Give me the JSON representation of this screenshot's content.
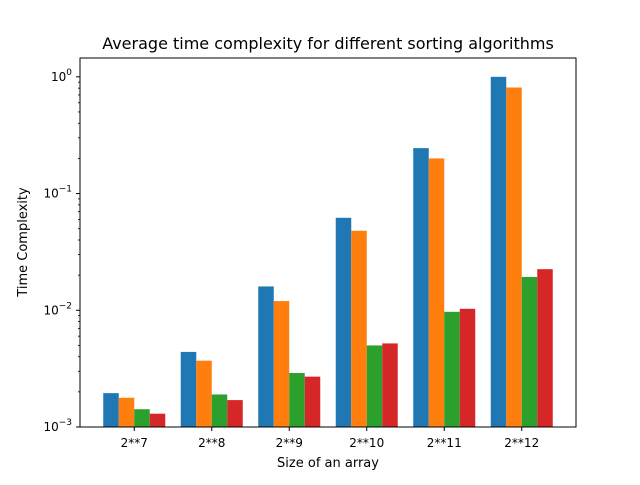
{
  "chart_data": {
    "type": "bar",
    "title": "Average time complexity for different sorting algorithms",
    "xlabel": "Size of an array",
    "ylabel": "Time Complexity",
    "yscale": "log",
    "ylim": [
      0.001,
      1.45
    ],
    "categories": [
      "2**7",
      "2**8",
      "2**9",
      "2**10",
      "2**11",
      "2**12"
    ],
    "ytick_values": [
      0.001,
      0.01,
      0.1,
      1
    ],
    "ytick_labels": [
      {
        "base": "10",
        "exp": "−3"
      },
      {
        "base": "10",
        "exp": "−2"
      },
      {
        "base": "10",
        "exp": "−1"
      },
      {
        "base": "10",
        "exp": "0"
      }
    ],
    "grid": false,
    "legend": "none",
    "series": [
      {
        "color": "#1f77b4",
        "values": [
          0.00195,
          0.0044,
          0.016,
          0.062,
          0.245,
          1.0
        ]
      },
      {
        "color": "#ff7f0e",
        "values": [
          0.00178,
          0.0037,
          0.012,
          0.048,
          0.2,
          0.81
        ]
      },
      {
        "color": "#2ca02c",
        "values": [
          0.00142,
          0.0019,
          0.0029,
          0.005,
          0.0097,
          0.0193
        ]
      },
      {
        "color": "#d62728",
        "values": [
          0.0013,
          0.0017,
          0.0027,
          0.0052,
          0.0103,
          0.0225
        ]
      }
    ]
  }
}
